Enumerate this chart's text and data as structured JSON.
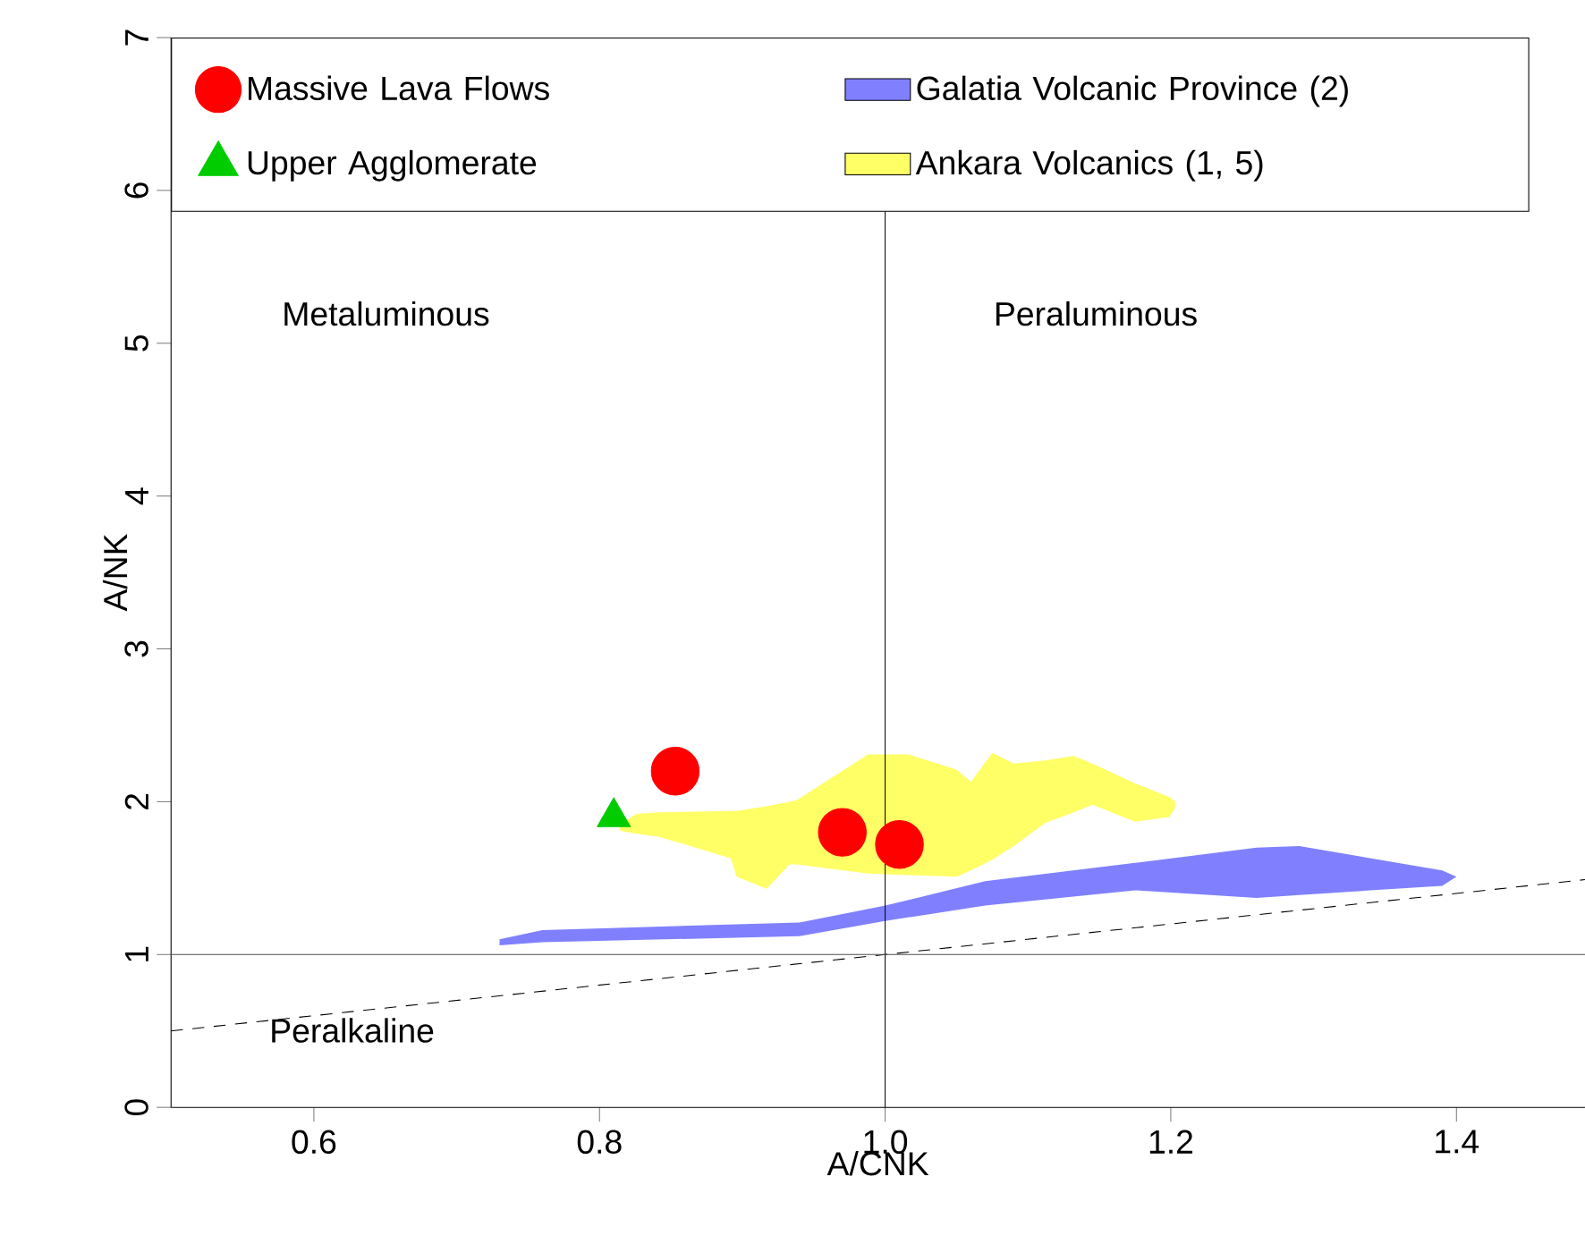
{
  "chart_data": {
    "type": "scatter",
    "xlabel": "A/CNK",
    "ylabel": "A/NK",
    "xlim": [
      0.5,
      1.49
    ],
    "ylim": [
      0,
      7
    ],
    "xticks": [
      0.6,
      0.8,
      {
        "value": 1,
        "label": "1.0"
      },
      1.2,
      1.4
    ],
    "yticks": [
      0,
      1,
      2,
      3,
      4,
      5,
      6,
      7
    ],
    "grid": false,
    "legend": "top",
    "series": [
      {
        "name": "Ankara Volcanics (1, 5)",
        "type": "line",
        "color": "#ffff66",
        "x": [
          0.814,
          0.826,
          0.842,
          0.892,
          0.896,
          0.917,
          0.933,
          0.938,
          0.988,
          1.016,
          1.05,
          1.06,
          1.075,
          1.09,
          1.112,
          1.132,
          1.145,
          1.175,
          1.199,
          1.203
        ],
        "values": [
          null,
          null,
          null,
          null,
          null,
          null,
          null,
          null,
          null,
          null,
          null,
          null,
          null,
          null,
          null,
          null,
          null,
          null,
          null,
          null
        ],
        "lower": [
          1.81,
          1.79,
          1.77,
          1.63,
          1.51,
          1.43,
          1.59,
          1.59,
          1.53,
          1.52,
          1.51,
          1.55,
          1.62,
          1.71,
          1.86,
          1.93,
          1.98,
          1.87,
          1.9,
          1.96
        ],
        "upper": [
          1.85,
          1.92,
          1.93,
          1.94,
          1.94,
          1.97,
          2.0,
          2.01,
          2.31,
          2.31,
          2.21,
          2.13,
          2.32,
          2.25,
          2.27,
          2.3,
          2.25,
          2.12,
          2.03,
          2.0
        ]
      },
      {
        "name": "Galatia Volcanic Province (2)",
        "type": "line",
        "color": "#8080ff",
        "x": [
          0.73,
          0.76,
          0.94,
          1.0,
          1.07,
          1.175,
          1.26,
          1.29,
          1.39,
          1.4
        ],
        "values": [
          null,
          null,
          null,
          null,
          null,
          null,
          null,
          null,
          null,
          null
        ],
        "lower": [
          1.06,
          1.08,
          1.12,
          1.22,
          1.32,
          1.42,
          1.37,
          1.39,
          1.45,
          1.51
        ],
        "upper": [
          1.1,
          1.16,
          1.21,
          1.32,
          1.48,
          1.6,
          1.7,
          1.71,
          1.55,
          1.51
        ]
      },
      {
        "type": "line",
        "color": "#000000",
        "line_style": "dashed",
        "x": [
          0.5,
          1.49
        ],
        "values": [
          0.5,
          1.49
        ]
      },
      {
        "name": "Massive Lava Flows",
        "marker": "circle",
        "color": "#ff0000",
        "x": [
          0.853,
          0.97,
          1.01
        ],
        "values": [
          2.2,
          1.8,
          1.72
        ]
      },
      {
        "name": "Upper Agglomerate",
        "marker": "triangle",
        "color": "#00cc00",
        "x": [
          0.81
        ],
        "values": [
          1.9
        ]
      }
    ],
    "ref_lines": [
      {
        "axis": "x",
        "value": 1
      },
      {
        "axis": "y",
        "value": 1
      }
    ],
    "annotations": [
      "Metaluminous",
      "Peraluminous",
      "Peralkaline"
    ]
  }
}
